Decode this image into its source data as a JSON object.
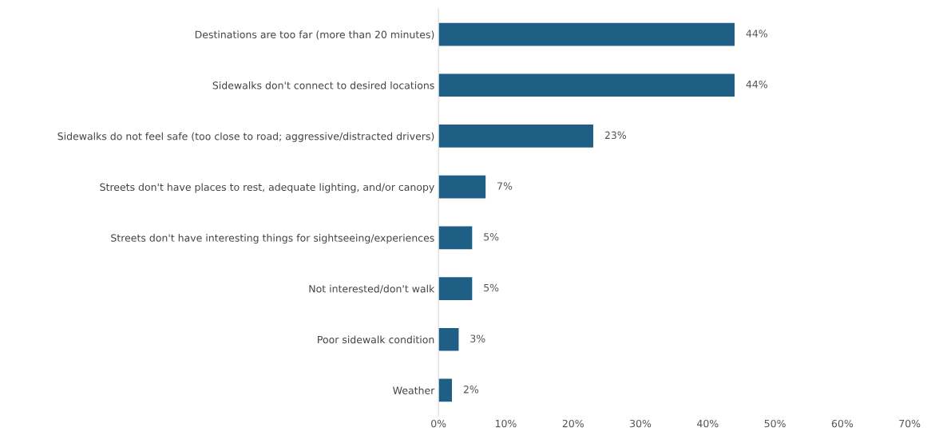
{
  "chart_data": {
    "type": "bar",
    "orientation": "horizontal",
    "categories": [
      "Destinations are too far (more than 20 minutes)",
      "Sidewalks don't connect to desired locations",
      "Sidewalks do not feel safe (too close to road; aggressive/distracted drivers)",
      "Streets don't have places to rest, adequate lighting, and/or canopy",
      "Streets don't have interesting things for sightseeing/experiences",
      "Not interested/don't walk",
      "Poor sidewalk condition",
      "Weather"
    ],
    "values": [
      44,
      44,
      23,
      7,
      5,
      5,
      3,
      2
    ],
    "value_labels": [
      "44%",
      "44%",
      "23%",
      "7%",
      "5%",
      "5%",
      "3%",
      "2%"
    ],
    "color": "#1f5f86",
    "xlim": [
      0,
      70
    ],
    "xticks": [
      {
        "value": 0,
        "label": "0%"
      },
      {
        "value": 10,
        "label": "10%"
      },
      {
        "value": 20,
        "label": "20%"
      },
      {
        "value": 30,
        "label": "30%"
      },
      {
        "value": 40,
        "label": "40%"
      },
      {
        "value": 50,
        "label": "50%"
      },
      {
        "value": 60,
        "label": "60%"
      },
      {
        "value": 70,
        "label": "70%"
      }
    ],
    "grid": false
  }
}
